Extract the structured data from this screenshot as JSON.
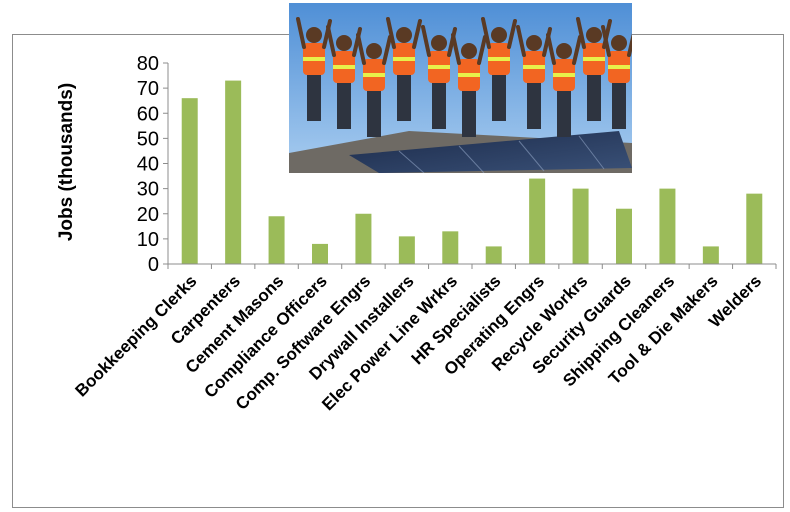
{
  "chart_data": {
    "type": "bar",
    "ylabel": "Jobs (thousands)",
    "ylim": [
      0,
      80
    ],
    "yticks": [
      0,
      10,
      20,
      30,
      40,
      50,
      60,
      70,
      80
    ],
    "grid": false,
    "bar_color": "#9bbb59",
    "categories": [
      "Bookkeeping Clerks",
      "Carpenters",
      "Cement Masons",
      "Compliance Officers",
      "Comp. Software Engrs",
      "Drywall Installers",
      "Elec Power Line Wrkrs",
      "HR Specialists",
      "Operating Engrs",
      "Recycle Workrs",
      "Security Guards",
      "Shipping Cleaners",
      "Tool & Die Makers",
      "Welders"
    ],
    "values": [
      66,
      73,
      19,
      8,
      20,
      11,
      13,
      7,
      34,
      30,
      22,
      30,
      7,
      28
    ]
  },
  "photo": {
    "icon": "solar-workers-photo"
  }
}
